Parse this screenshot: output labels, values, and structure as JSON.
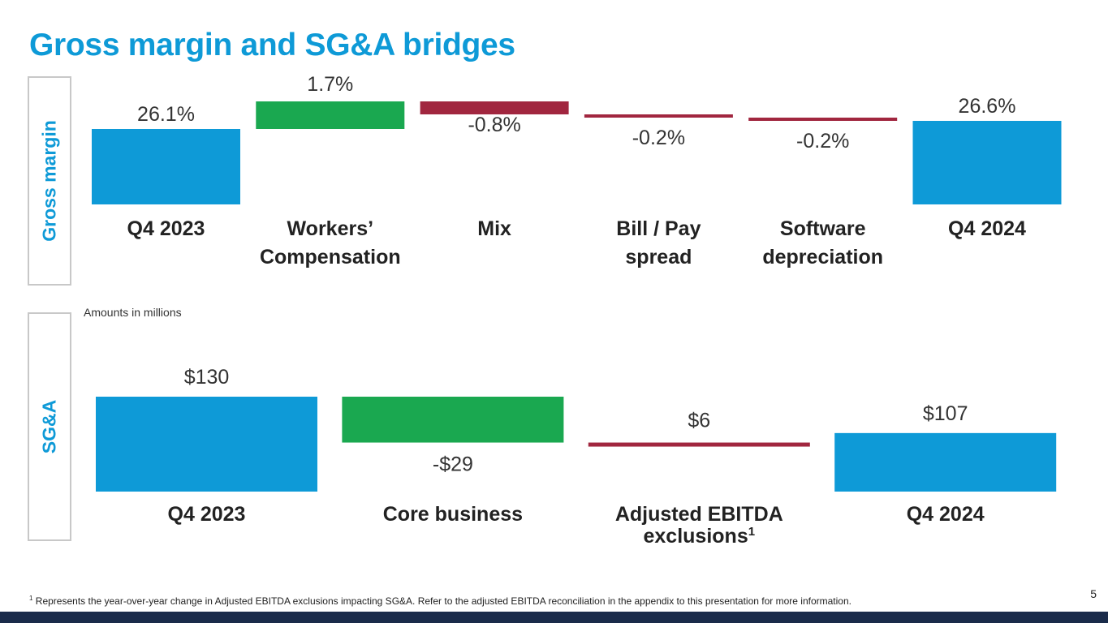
{
  "title": "Gross margin and SG&A bridges",
  "colors": {
    "base": "#0e9ad7",
    "increase": "#1aa850",
    "decrease": "#a1263f"
  },
  "gross_margin": {
    "side_label": "Gross margin"
  },
  "sga": {
    "side_label": "SG&A",
    "note": "Amounts in millions"
  },
  "footnote": {
    "marker": "1",
    "text": "Represents the year-over-year change in Adjusted EBITDA exclusions impacting SG&A. Refer to the adjusted EBITDA reconciliation in the appendix to this presentation for more information."
  },
  "page_number": "5",
  "chart_data": [
    {
      "type": "bar",
      "subtype": "waterfall",
      "title": "Gross margin",
      "unit": "%",
      "categories": [
        [
          "Q4 2023"
        ],
        [
          "Workers’",
          "Compensation"
        ],
        [
          "Mix"
        ],
        [
          "Bill / Pay",
          "spread"
        ],
        [
          "Software",
          "depreciation"
        ],
        [
          "Q4 2024"
        ]
      ],
      "values": [
        26.1,
        1.7,
        -0.8,
        -0.2,
        -0.2,
        26.6
      ],
      "kinds": [
        "total",
        "delta",
        "delta",
        "delta",
        "delta",
        "total"
      ],
      "value_labels": [
        "26.1%",
        "1.7%",
        "-0.8%",
        "-0.2%",
        "-0.2%",
        "26.6%"
      ]
    },
    {
      "type": "bar",
      "subtype": "waterfall",
      "title": "SG&A",
      "unit": "$M",
      "categories": [
        [
          "Q4 2023"
        ],
        [
          "Core business"
        ],
        [
          "Adjusted EBITDA",
          "exclusions"
        ],
        [
          "Q4 2024"
        ]
      ],
      "category_superscripts": [
        "",
        "",
        "1",
        ""
      ],
      "values": [
        130,
        -29,
        6,
        107
      ],
      "kinds": [
        "total",
        "delta",
        "delta",
        "total"
      ],
      "value_labels": [
        "$130",
        "-$29",
        "$6",
        "$107"
      ]
    }
  ]
}
